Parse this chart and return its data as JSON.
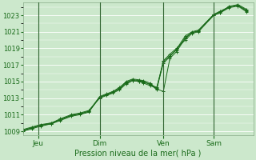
{
  "xlabel": "Pression niveau de la mer( hPa )",
  "bg_color": "#cce8cc",
  "grid_major_color": "#ffffff",
  "line_color": "#1a6b1a",
  "ylim": [
    1008.5,
    1024.5
  ],
  "yticks": [
    1009,
    1011,
    1013,
    1015,
    1017,
    1019,
    1021,
    1023
  ],
  "xlim": [
    0.0,
    1.05
  ],
  "day_positions": [
    0.07,
    0.35,
    0.64,
    0.87
  ],
  "day_labels": [
    "Jeu",
    "Dim",
    "Ven",
    "Sam"
  ],
  "vline_positions": [
    0.07,
    0.35,
    0.64,
    0.87
  ],
  "series": [
    {
      "x": [
        0.0,
        0.04,
        0.08,
        0.13,
        0.17,
        0.22,
        0.26,
        0.3,
        0.35,
        0.38,
        0.41,
        0.44,
        0.47,
        0.5,
        0.53,
        0.55,
        0.58,
        0.61,
        0.64,
        0.67,
        0.7,
        0.74,
        0.77,
        0.8,
        0.87,
        0.9,
        0.94,
        0.98,
        1.02
      ],
      "y": [
        1009.2,
        1009.5,
        1009.8,
        1010.0,
        1010.5,
        1011.0,
        1011.2,
        1011.5,
        1013.0,
        1013.3,
        1013.6,
        1014.0,
        1014.7,
        1015.1,
        1015.0,
        1014.8,
        1014.5,
        1014.2,
        1017.5,
        1018.3,
        1019.0,
        1020.0,
        1020.8,
        1021.0,
        1023.0,
        1023.3,
        1023.9,
        1024.1,
        1023.4
      ]
    },
    {
      "x": [
        0.0,
        0.04,
        0.08,
        0.13,
        0.17,
        0.22,
        0.26,
        0.3,
        0.35,
        0.38,
        0.41,
        0.44,
        0.47,
        0.5,
        0.53,
        0.55,
        0.58,
        0.61,
        0.64,
        0.67,
        0.7,
        0.74,
        0.77,
        0.8,
        0.87,
        0.9,
        0.94,
        0.98,
        1.02
      ],
      "y": [
        1009.0,
        1009.3,
        1009.6,
        1009.9,
        1010.3,
        1010.8,
        1011.0,
        1011.3,
        1013.1,
        1013.4,
        1013.7,
        1014.2,
        1015.0,
        1015.3,
        1015.2,
        1015.1,
        1014.8,
        1014.1,
        1013.8,
        1017.8,
        1018.6,
        1020.2,
        1020.9,
        1021.1,
        1023.1,
        1023.5,
        1024.0,
        1024.3,
        1023.7
      ]
    },
    {
      "x": [
        0.0,
        0.04,
        0.08,
        0.13,
        0.17,
        0.22,
        0.26,
        0.3,
        0.35,
        0.38,
        0.41,
        0.44,
        0.47,
        0.5,
        0.53,
        0.55,
        0.58,
        0.61,
        0.64,
        0.67,
        0.7,
        0.74,
        0.77,
        0.8,
        0.87,
        0.9,
        0.94,
        0.98,
        1.02
      ],
      "y": [
        1009.1,
        1009.4,
        1009.7,
        1010.0,
        1010.4,
        1010.9,
        1011.1,
        1011.4,
        1013.2,
        1013.5,
        1013.8,
        1014.3,
        1014.9,
        1015.2,
        1015.1,
        1015.0,
        1014.6,
        1014.3,
        1017.2,
        1018.0,
        1018.9,
        1020.5,
        1021.0,
        1021.2,
        1023.1,
        1023.4,
        1024.0,
        1024.2,
        1023.6
      ]
    },
    {
      "x": [
        0.0,
        0.04,
        0.08,
        0.13,
        0.17,
        0.22,
        0.26,
        0.3,
        0.35,
        0.38,
        0.41,
        0.44,
        0.47,
        0.5,
        0.53,
        0.55,
        0.58,
        0.61,
        0.64,
        0.67,
        0.7,
        0.74,
        0.77,
        0.8,
        0.87,
        0.9,
        0.94,
        0.98,
        1.02
      ],
      "y": [
        1009.1,
        1009.4,
        1009.7,
        1009.9,
        1010.4,
        1010.9,
        1011.1,
        1011.4,
        1013.1,
        1013.4,
        1013.7,
        1014.1,
        1014.8,
        1015.1,
        1015.0,
        1014.9,
        1014.7,
        1014.0,
        1017.4,
        1018.1,
        1018.8,
        1020.3,
        1020.9,
        1021.1,
        1023.0,
        1023.3,
        1024.1,
        1024.2,
        1023.5
      ]
    }
  ]
}
